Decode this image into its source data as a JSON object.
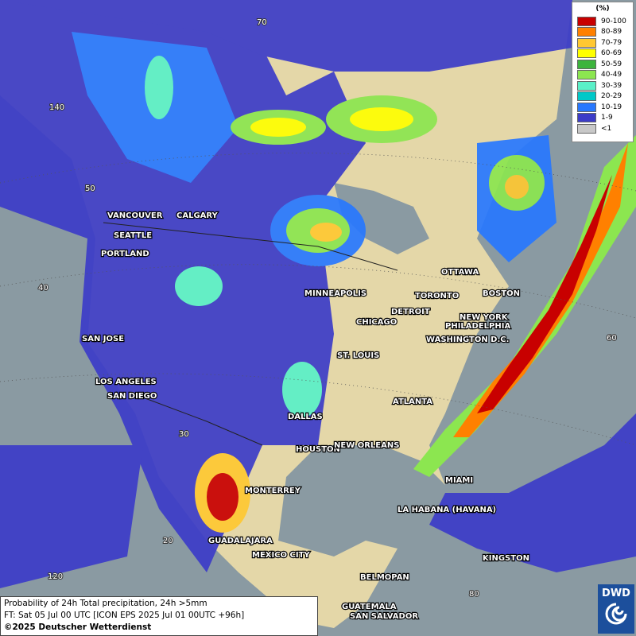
{
  "legend": {
    "title": "(%)",
    "entries": [
      {
        "label": "90-100",
        "color": "#c80000"
      },
      {
        "label": "80-89",
        "color": "#ff8000"
      },
      {
        "label": "70-79",
        "color": "#ffc832"
      },
      {
        "label": "60-69",
        "color": "#ffff00"
      },
      {
        "label": "50-59",
        "color": "#3cb43c"
      },
      {
        "label": "40-49",
        "color": "#8ce650"
      },
      {
        "label": "30-39",
        "color": "#5af0c8"
      },
      {
        "label": "20-29",
        "color": "#00c8c8"
      },
      {
        "label": "10-19",
        "color": "#2878ff"
      },
      {
        "label": "1-9",
        "color": "#3c3cc8"
      },
      {
        "label": "<1",
        "color": "#c8c8c8"
      }
    ]
  },
  "cities": [
    "VANCOUVER",
    "CALGARY",
    "SEATTLE",
    "PORTLAND",
    "MINNEAPOLIS",
    "OTTAWA",
    "TORONTO",
    "BOSTON",
    "DETROIT",
    "CHICAGO",
    "NEW YORK",
    "PHILADELPHIA",
    "WASHINGTON D.C.",
    "SAN JOSE",
    "ST. LOUIS",
    "LOS ANGELES",
    "SAN DIEGO",
    "ATLANTA",
    "DALLAS",
    "HOUSTON",
    "NEW ORLEANS",
    "MIAMI",
    "MONTERREY",
    "LA HABANA (HAVANA)",
    "GUADALAJARA",
    "MEXICO CITY",
    "KINGSTON",
    "BELMOPAN",
    "GUATEMALA",
    "SAN SALVADOR"
  ],
  "graticule_labels": [
    "70",
    "140",
    "50",
    "40",
    "30",
    "20",
    "120",
    "60",
    "80"
  ],
  "caption": {
    "lines": [
      "Probability of 24h Total precipitation, 24h >5mm",
      "FT: Sat 05 Jul 00 UTC [ICON EPS 2025 Jul 01 00UTC +96h]"
    ],
    "copyright": "©2025 Deutscher Wetterdienst"
  },
  "logo": "DWD"
}
